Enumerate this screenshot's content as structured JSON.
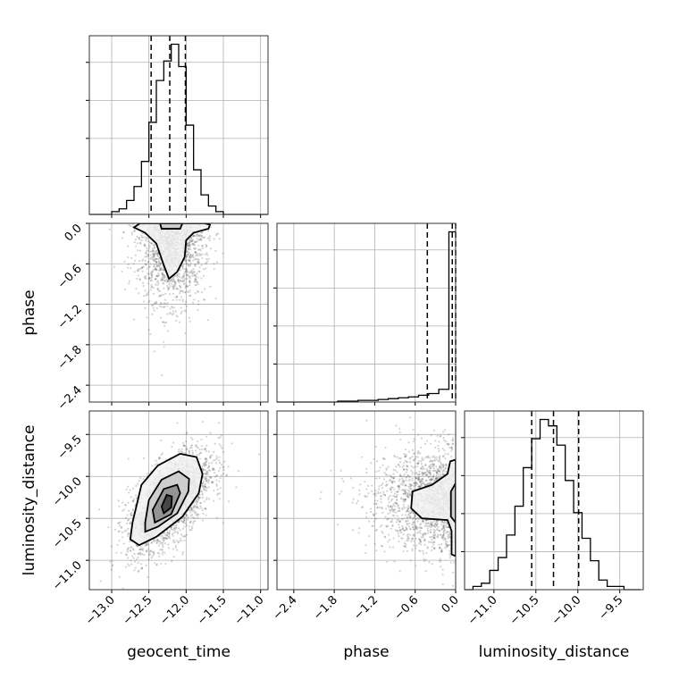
{
  "chart_data": {
    "type": "corner",
    "parameters": [
      "geocent_time",
      "phase",
      "luminosity_distance"
    ],
    "axes": {
      "geocent_time": {
        "label": "geocent_time",
        "range": [
          -13.3,
          -10.9
        ],
        "ticks": [
          -13.0,
          -12.5,
          -12.0,
          -11.5,
          -11.0
        ],
        "tick_labels": [
          "−13.0",
          "−12.5",
          "−12.0",
          "−11.5",
          "−11.0"
        ]
      },
      "phase": {
        "label": "phase",
        "range": [
          -2.65,
          0.0
        ],
        "ticks": [
          -2.4,
          -1.8,
          -1.2,
          -0.6,
          0.0
        ],
        "tick_labels": [
          "−2.4",
          "−1.8",
          "−1.2",
          "−0.6",
          "0.0"
        ]
      },
      "luminosity_distance": {
        "label": "luminosity_distance",
        "range": [
          -11.35,
          -9.22
        ],
        "ticks": [
          -11.0,
          -10.5,
          -10.0,
          -9.5
        ],
        "tick_labels": [
          "−11.0",
          "−10.5",
          "−10.0",
          "−9.5"
        ]
      }
    },
    "histograms": {
      "geocent_time": {
        "bin_edges": [
          -13.3,
          -13.2,
          -13.1,
          -13.0,
          -12.9,
          -12.8,
          -12.7,
          -12.6,
          -12.5,
          -12.4,
          -12.3,
          -12.2,
          -12.1,
          -12.0,
          -11.9,
          -11.8,
          -11.7,
          -11.6,
          -11.5,
          -11.4,
          -11.3,
          -11.2,
          -11.1,
          -11.0,
          -10.9
        ],
        "counts": [
          0,
          0,
          0,
          1,
          2,
          5,
          10,
          19,
          33,
          48,
          55,
          61,
          53,
          32,
          16,
          7,
          3,
          1,
          0,
          0,
          0,
          0,
          0,
          0
        ],
        "quantiles": [
          -12.47,
          -12.22,
          -12.01
        ]
      },
      "phase": {
        "bin_edges": [
          -2.65,
          -2.5,
          -2.35,
          -2.2,
          -2.05,
          -1.9,
          -1.75,
          -1.6,
          -1.45,
          -1.3,
          -1.15,
          -1.0,
          -0.85,
          -0.7,
          -0.55,
          -0.4,
          -0.25,
          -0.1,
          0.0
        ],
        "counts": [
          0,
          0,
          0,
          0,
          0,
          0,
          1,
          1,
          2,
          2,
          3,
          4,
          5,
          6,
          8,
          10,
          15,
          200
        ],
        "quantiles": [
          -0.42,
          -0.05,
          0.0
        ]
      },
      "luminosity_distance": {
        "bin_edges": [
          -11.35,
          -11.25,
          -11.15,
          -11.05,
          -10.95,
          -10.85,
          -10.75,
          -10.65,
          -10.55,
          -10.45,
          -10.35,
          -10.25,
          -10.15,
          -10.05,
          -9.95,
          -9.85,
          -9.75,
          -9.65,
          -9.55,
          -9.45,
          -9.35,
          -9.25
        ],
        "counts": [
          0,
          1,
          2,
          6,
          10,
          17,
          26,
          38,
          47,
          53,
          51,
          45,
          34,
          24,
          16,
          9,
          3,
          1,
          1,
          0,
          0
        ],
        "quantiles": [
          -10.55,
          -10.29,
          -9.99
        ]
      }
    },
    "pairs": [
      {
        "x": "geocent_time",
        "y": "phase",
        "center": [
          -12.2,
          -0.05
        ],
        "spread": [
          0.22,
          0.4
        ],
        "correlation": 0.0,
        "n": 1600,
        "contours": [
          [
            [
              -12.62,
              0.0
            ],
            [
              -12.7,
              -0.06
            ],
            [
              -12.55,
              -0.14
            ],
            [
              -12.4,
              -0.3
            ],
            [
              -12.3,
              -0.62
            ],
            [
              -12.23,
              -0.82
            ],
            [
              -12.12,
              -0.72
            ],
            [
              -12.02,
              -0.5
            ],
            [
              -12.0,
              -0.25
            ],
            [
              -11.9,
              -0.14
            ],
            [
              -11.7,
              -0.08
            ],
            [
              -11.68,
              -0.02
            ],
            [
              -11.75,
              0.0
            ]
          ],
          [
            [
              -12.35,
              0.0
            ],
            [
              -12.33,
              -0.08
            ],
            [
              -12.08,
              -0.08
            ],
            [
              -12.05,
              0.0
            ]
          ]
        ]
      },
      {
        "x": "geocent_time",
        "y": "luminosity_distance",
        "center": [
          -12.22,
          -10.29
        ],
        "spread": [
          0.28,
          0.3
        ],
        "correlation": 0.6,
        "n": 2500,
        "contours": [
          [
            [
              -12.72,
              -10.55
            ],
            [
              -12.75,
              -10.75
            ],
            [
              -12.63,
              -10.82
            ],
            [
              -12.4,
              -10.72
            ],
            [
              -12.05,
              -10.48
            ],
            [
              -11.83,
              -10.2
            ],
            [
              -11.78,
              -9.97
            ],
            [
              -11.86,
              -9.77
            ],
            [
              -12.08,
              -9.73
            ],
            [
              -12.38,
              -9.87
            ],
            [
              -12.6,
              -10.1
            ]
          ],
          [
            [
              -12.55,
              -10.55
            ],
            [
              -12.55,
              -10.66
            ],
            [
              -12.38,
              -10.6
            ],
            [
              -12.12,
              -10.44
            ],
            [
              -11.97,
              -10.18
            ],
            [
              -11.96,
              -10.03
            ],
            [
              -12.1,
              -9.94
            ],
            [
              -12.33,
              -10.04
            ],
            [
              -12.5,
              -10.28
            ]
          ],
          [
            [
              -12.45,
              -10.4
            ],
            [
              -12.42,
              -10.55
            ],
            [
              -12.2,
              -10.45
            ],
            [
              -12.08,
              -10.2
            ],
            [
              -12.12,
              -10.1
            ],
            [
              -12.3,
              -10.15
            ]
          ],
          [
            [
              -12.33,
              -10.36
            ],
            [
              -12.3,
              -10.44
            ],
            [
              -12.2,
              -10.37
            ],
            [
              -12.19,
              -10.24
            ],
            [
              -12.26,
              -10.22
            ]
          ]
        ]
      },
      {
        "x": "phase",
        "y": "luminosity_distance",
        "center": [
          -0.05,
          -10.29
        ],
        "spread": [
          0.4,
          0.3
        ],
        "correlation": 0.0,
        "n": 1800,
        "contours": [
          [
            [
              0.0,
              -9.8
            ],
            [
              -0.08,
              -9.82
            ],
            [
              -0.12,
              -9.97
            ],
            [
              -0.35,
              -10.1
            ],
            [
              -0.64,
              -10.18
            ],
            [
              -0.66,
              -10.38
            ],
            [
              -0.5,
              -10.5
            ],
            [
              -0.12,
              -10.52
            ],
            [
              -0.06,
              -10.65
            ],
            [
              -0.06,
              -10.93
            ],
            [
              0.0,
              -10.95
            ]
          ],
          [
            [
              0.0,
              -10.08
            ],
            [
              -0.07,
              -10.18
            ],
            [
              -0.07,
              -10.48
            ],
            [
              0.0,
              -10.55
            ]
          ]
        ]
      }
    ]
  }
}
